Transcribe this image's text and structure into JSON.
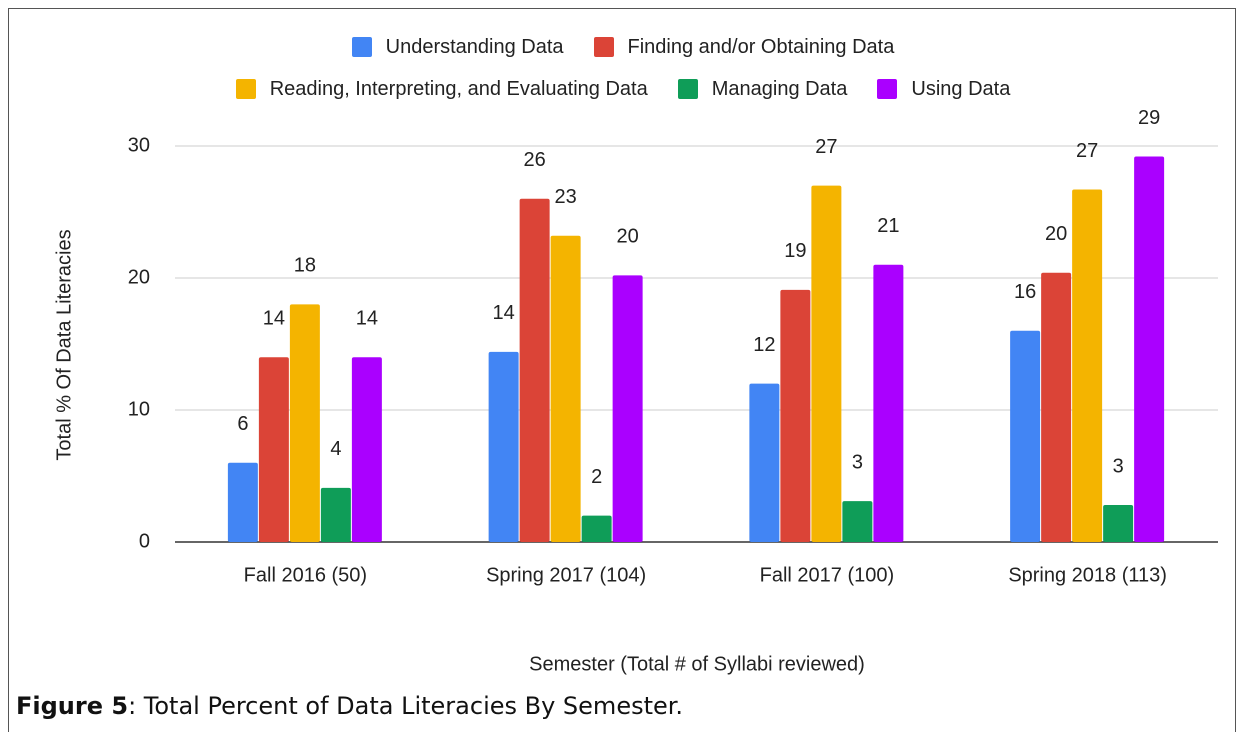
{
  "chart_data": {
    "type": "bar",
    "categories": [
      "Fall 2016 (50)",
      "Spring 2017 (104)",
      "Fall 2017 (100)",
      "Spring 2018 (113)"
    ],
    "series": [
      {
        "name": "Understanding Data",
        "color": "#4285f4",
        "values": [
          6,
          14.4,
          12,
          16
        ],
        "value_labels": [
          "6",
          "14",
          "12",
          "16"
        ]
      },
      {
        "name": "Finding and/or Obtaining Data",
        "color": "#db4437",
        "values": [
          14,
          26,
          19.1,
          20.4
        ],
        "value_labels": [
          "14",
          "26",
          "19",
          "20"
        ]
      },
      {
        "name": "Reading, Interpreting, and Evaluating Data",
        "color": "#f4b400",
        "values": [
          18,
          23.2,
          27,
          26.7
        ],
        "value_labels": [
          "18",
          "23",
          "27",
          "27"
        ]
      },
      {
        "name": "Managing Data",
        "color": "#0f9d58",
        "values": [
          4.1,
          2,
          3.1,
          2.8
        ],
        "value_labels": [
          "4",
          "2",
          "3",
          "3"
        ]
      },
      {
        "name": "Using Data",
        "color": "#aa00ff",
        "values": [
          14,
          20.2,
          21,
          29.2
        ],
        "value_labels": [
          "14",
          "20",
          "21",
          "29"
        ]
      }
    ],
    "ylim": [
      0,
      30
    ],
    "yticks": [
      0,
      10,
      20,
      30
    ],
    "grid": true,
    "legend": "top",
    "ylabel": "Total % Of Data Literacies",
    "xlabel": "Semester (Total # of Syllabi reviewed)"
  },
  "caption": {
    "label": "Figure 5",
    "text": ": Total Percent of Data Literacies By Semester."
  }
}
